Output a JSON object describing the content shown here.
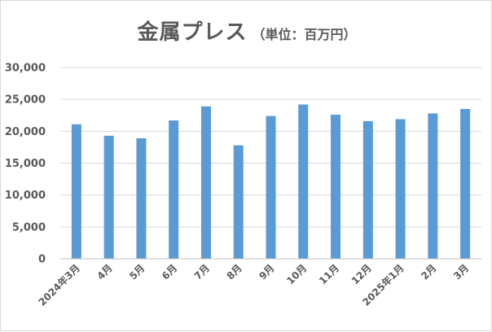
{
  "chart_data": {
    "type": "bar",
    "title": "金属プレス",
    "subtitle": "（単位：百万円）",
    "xlabel": "",
    "ylabel": "",
    "categories": [
      "2024年3月",
      "4月",
      "5月",
      "6月",
      "7月",
      "8月",
      "9月",
      "10月",
      "11月",
      "12月",
      "2025年1月",
      "2月",
      "3月"
    ],
    "values": [
      21100,
      19300,
      18900,
      21700,
      23900,
      17800,
      22400,
      24200,
      22600,
      21600,
      21900,
      22800,
      23500
    ],
    "ylim": [
      0,
      30000
    ],
    "yticks": [
      0,
      5000,
      10000,
      15000,
      20000,
      25000,
      30000
    ],
    "ytick_labels": [
      "0",
      "5,000",
      "10,000",
      "15,000",
      "20,000",
      "25,000",
      "30,000"
    ],
    "grid": true,
    "legend": "none",
    "colors": {
      "bar": "#5b9bd5",
      "grid": "#d9d9d9",
      "axis": "#bfbfbf",
      "text": "#595959"
    }
  }
}
